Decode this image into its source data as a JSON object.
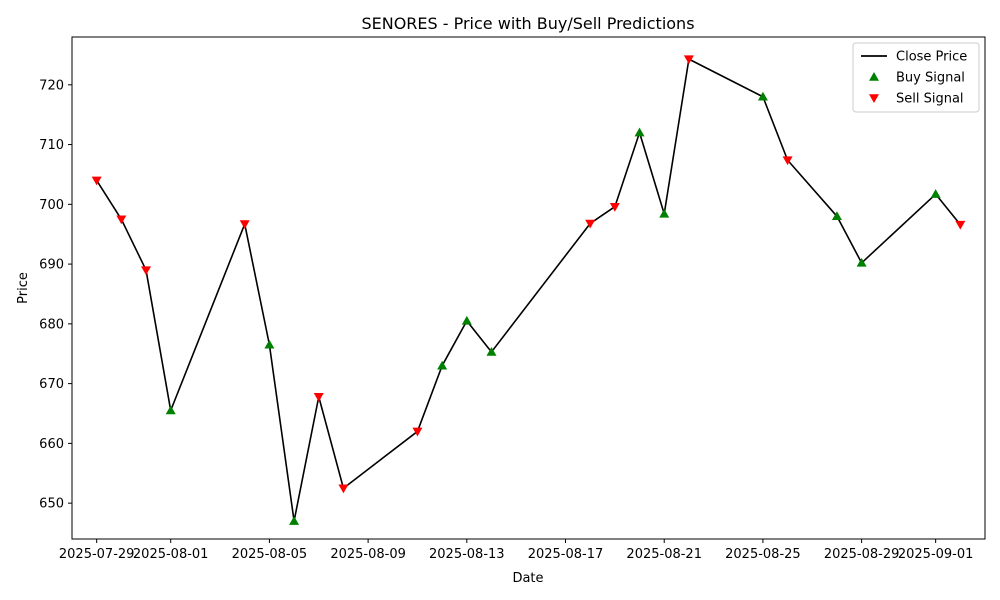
{
  "chart_data": {
    "type": "line",
    "title": "SENORES - Price with Buy/Sell Predictions",
    "xlabel": "Date",
    "ylabel": "Price",
    "ylim": [
      644,
      728
    ],
    "xlim": [
      "2025-07-28",
      "2025-09-03"
    ],
    "x_ticks": [
      "2025-07-29",
      "2025-08-01",
      "2025-08-05",
      "2025-08-09",
      "2025-08-13",
      "2025-08-17",
      "2025-08-21",
      "2025-08-25",
      "2025-08-29",
      "2025-09-01"
    ],
    "y_ticks": [
      650,
      660,
      670,
      680,
      690,
      700,
      710,
      720
    ],
    "grid": false,
    "legend_position": "top-right",
    "series": [
      {
        "name": "Close Price",
        "kind": "line",
        "color": "#000000",
        "points": [
          [
            "2025-07-29",
            704.0
          ],
          [
            "2025-07-30",
            697.5
          ],
          [
            "2025-07-31",
            689.0
          ],
          [
            "2025-08-01",
            665.5
          ],
          [
            "2025-08-04",
            696.7
          ],
          [
            "2025-08-05",
            676.5
          ],
          [
            "2025-08-06",
            647.0
          ],
          [
            "2025-08-07",
            667.8
          ],
          [
            "2025-08-08",
            652.5
          ],
          [
            "2025-08-11",
            662.0
          ],
          [
            "2025-08-12",
            673.0
          ],
          [
            "2025-08-13",
            680.5
          ],
          [
            "2025-08-14",
            675.3
          ],
          [
            "2025-08-18",
            696.8
          ],
          [
            "2025-08-19",
            699.6
          ],
          [
            "2025-08-20",
            712.0
          ],
          [
            "2025-08-21",
            698.4
          ],
          [
            "2025-08-22",
            724.3
          ],
          [
            "2025-08-25",
            718.0
          ],
          [
            "2025-08-26",
            707.4
          ],
          [
            "2025-08-28",
            698.0
          ],
          [
            "2025-08-29",
            690.2
          ],
          [
            "2025-09-01",
            701.7
          ],
          [
            "2025-09-02",
            696.6
          ]
        ]
      },
      {
        "name": "Buy Signal",
        "kind": "scatter",
        "marker": "triangle-up",
        "color": "#008000",
        "points": [
          [
            "2025-08-01",
            665.5
          ],
          [
            "2025-08-05",
            676.5
          ],
          [
            "2025-08-06",
            647.0
          ],
          [
            "2025-08-12",
            673.0
          ],
          [
            "2025-08-13",
            680.5
          ],
          [
            "2025-08-14",
            675.3
          ],
          [
            "2025-08-20",
            712.0
          ],
          [
            "2025-08-21",
            698.4
          ],
          [
            "2025-08-25",
            718.0
          ],
          [
            "2025-08-28",
            698.0
          ],
          [
            "2025-08-29",
            690.2
          ],
          [
            "2025-09-01",
            701.7
          ]
        ]
      },
      {
        "name": "Sell Signal",
        "kind": "scatter",
        "marker": "triangle-down",
        "color": "#ff0000",
        "points": [
          [
            "2025-07-29",
            704.0
          ],
          [
            "2025-07-30",
            697.5
          ],
          [
            "2025-07-31",
            689.0
          ],
          [
            "2025-08-04",
            696.7
          ],
          [
            "2025-08-07",
            667.8
          ],
          [
            "2025-08-08",
            652.5
          ],
          [
            "2025-08-11",
            662.0
          ],
          [
            "2025-08-18",
            696.8
          ],
          [
            "2025-08-19",
            699.6
          ],
          [
            "2025-08-22",
            724.3
          ],
          [
            "2025-08-26",
            707.4
          ],
          [
            "2025-09-02",
            696.6
          ]
        ]
      }
    ]
  }
}
